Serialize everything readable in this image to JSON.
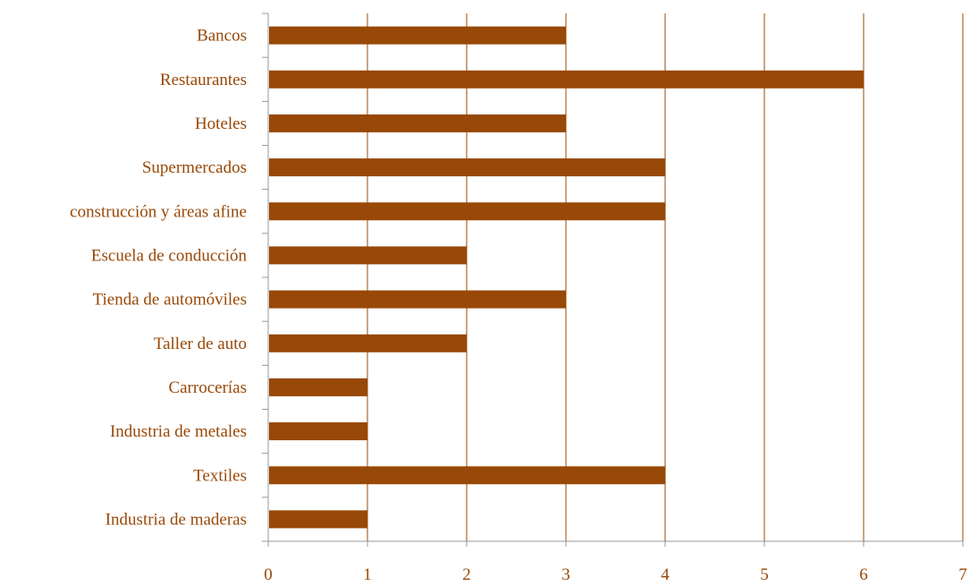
{
  "chart_data": {
    "type": "bar",
    "orientation": "horizontal",
    "title": "",
    "xlabel": "",
    "ylabel": "",
    "categories": [
      "Bancos",
      "Restaurantes",
      "Hoteles",
      "Supermercados",
      "construcción y áreas afine",
      "Escuela de conducción",
      "Tienda de automóviles",
      "Taller de auto",
      "Carrocerías",
      "Industria de metales",
      "Textiles",
      "Industria de maderas"
    ],
    "values": [
      3,
      6,
      3,
      4,
      4,
      2,
      3,
      2,
      1,
      1,
      4,
      1
    ],
    "xlim": [
      0,
      7
    ],
    "xticks": [
      "0",
      "1",
      "2",
      "3",
      "4",
      "5",
      "6",
      "7"
    ],
    "grid": "vertical",
    "legend": "none",
    "colors": {
      "bar": "#984807",
      "text": "#984807",
      "grid": "#984807",
      "axis": "#999999"
    }
  }
}
